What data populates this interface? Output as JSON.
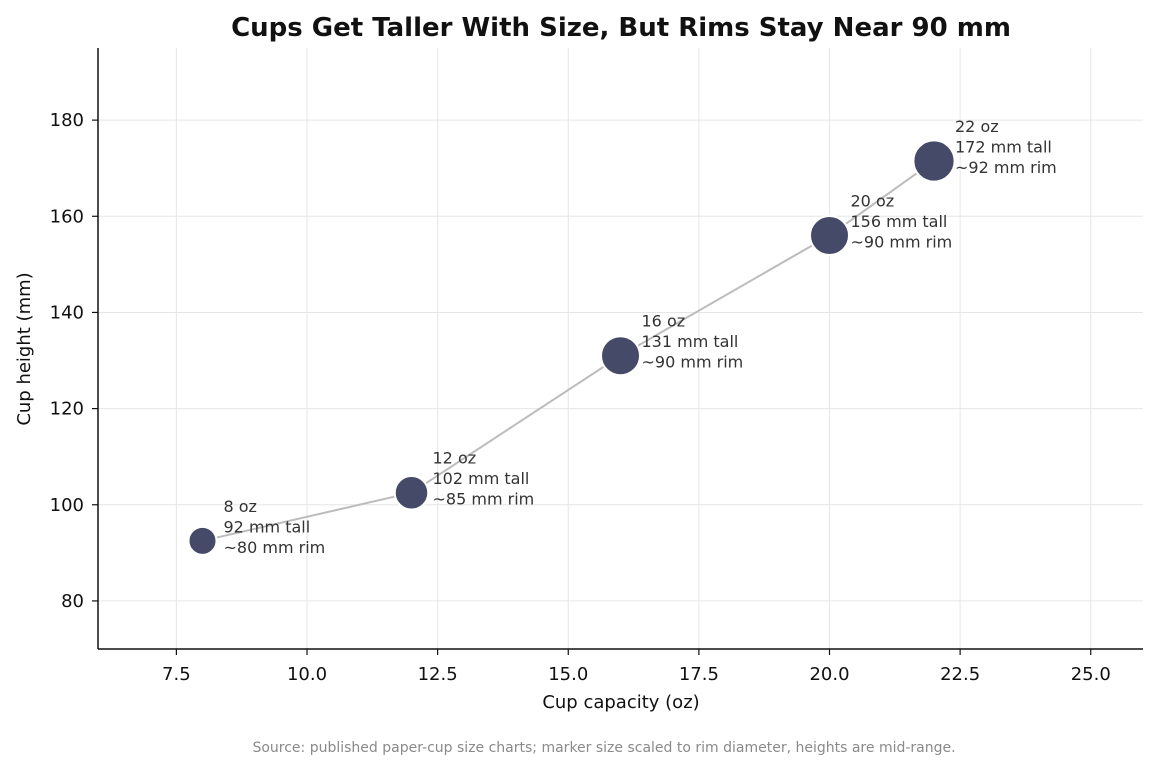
{
  "chart_data": {
    "type": "scatter",
    "title": "Cups Get Taller With Size, But Rims Stay Near 90 mm",
    "xlabel": "Cup capacity (oz)",
    "ylabel": "Cup height (mm)",
    "xlim": [
      6.0,
      26.0
    ],
    "ylim": [
      70,
      195
    ],
    "xticks": [
      "7.5",
      "10.0",
      "12.5",
      "15.0",
      "17.5",
      "20.0",
      "22.5",
      "25.0"
    ],
    "yticks": [
      "80",
      "100",
      "120",
      "140",
      "160",
      "180"
    ],
    "grid": true,
    "connecting_line": true,
    "points": [
      {
        "x": 8,
        "y": 92.5,
        "rim_mm": 80,
        "annotation": [
          "8 oz",
          "92 mm tall",
          "~80 mm rim"
        ]
      },
      {
        "x": 12,
        "y": 102.5,
        "rim_mm": 85,
        "annotation": [
          "12 oz",
          "102 mm tall",
          "~85 mm rim"
        ]
      },
      {
        "x": 16,
        "y": 131,
        "rim_mm": 90,
        "annotation": [
          "16 oz",
          "131 mm tall",
          "~90 mm rim"
        ]
      },
      {
        "x": 20,
        "y": 156,
        "rim_mm": 90,
        "annotation": [
          "20 oz",
          "156 mm tall",
          "~90 mm rim"
        ]
      },
      {
        "x": 22,
        "y": 171.5,
        "rim_mm": 92,
        "annotation": [
          "22 oz",
          "172 mm tall",
          "~92 mm rim"
        ]
      }
    ],
    "source": "Source: published paper-cup size charts; marker size scaled to rim diameter, heights are mid-range."
  },
  "colors": {
    "marker": "#454a68",
    "marker_edge": "#ffffff",
    "line": "#bdbbbb",
    "grid": "#e6e6e6",
    "axis": "#111111",
    "annotation": "#333333",
    "source": "#8a8a8a"
  }
}
